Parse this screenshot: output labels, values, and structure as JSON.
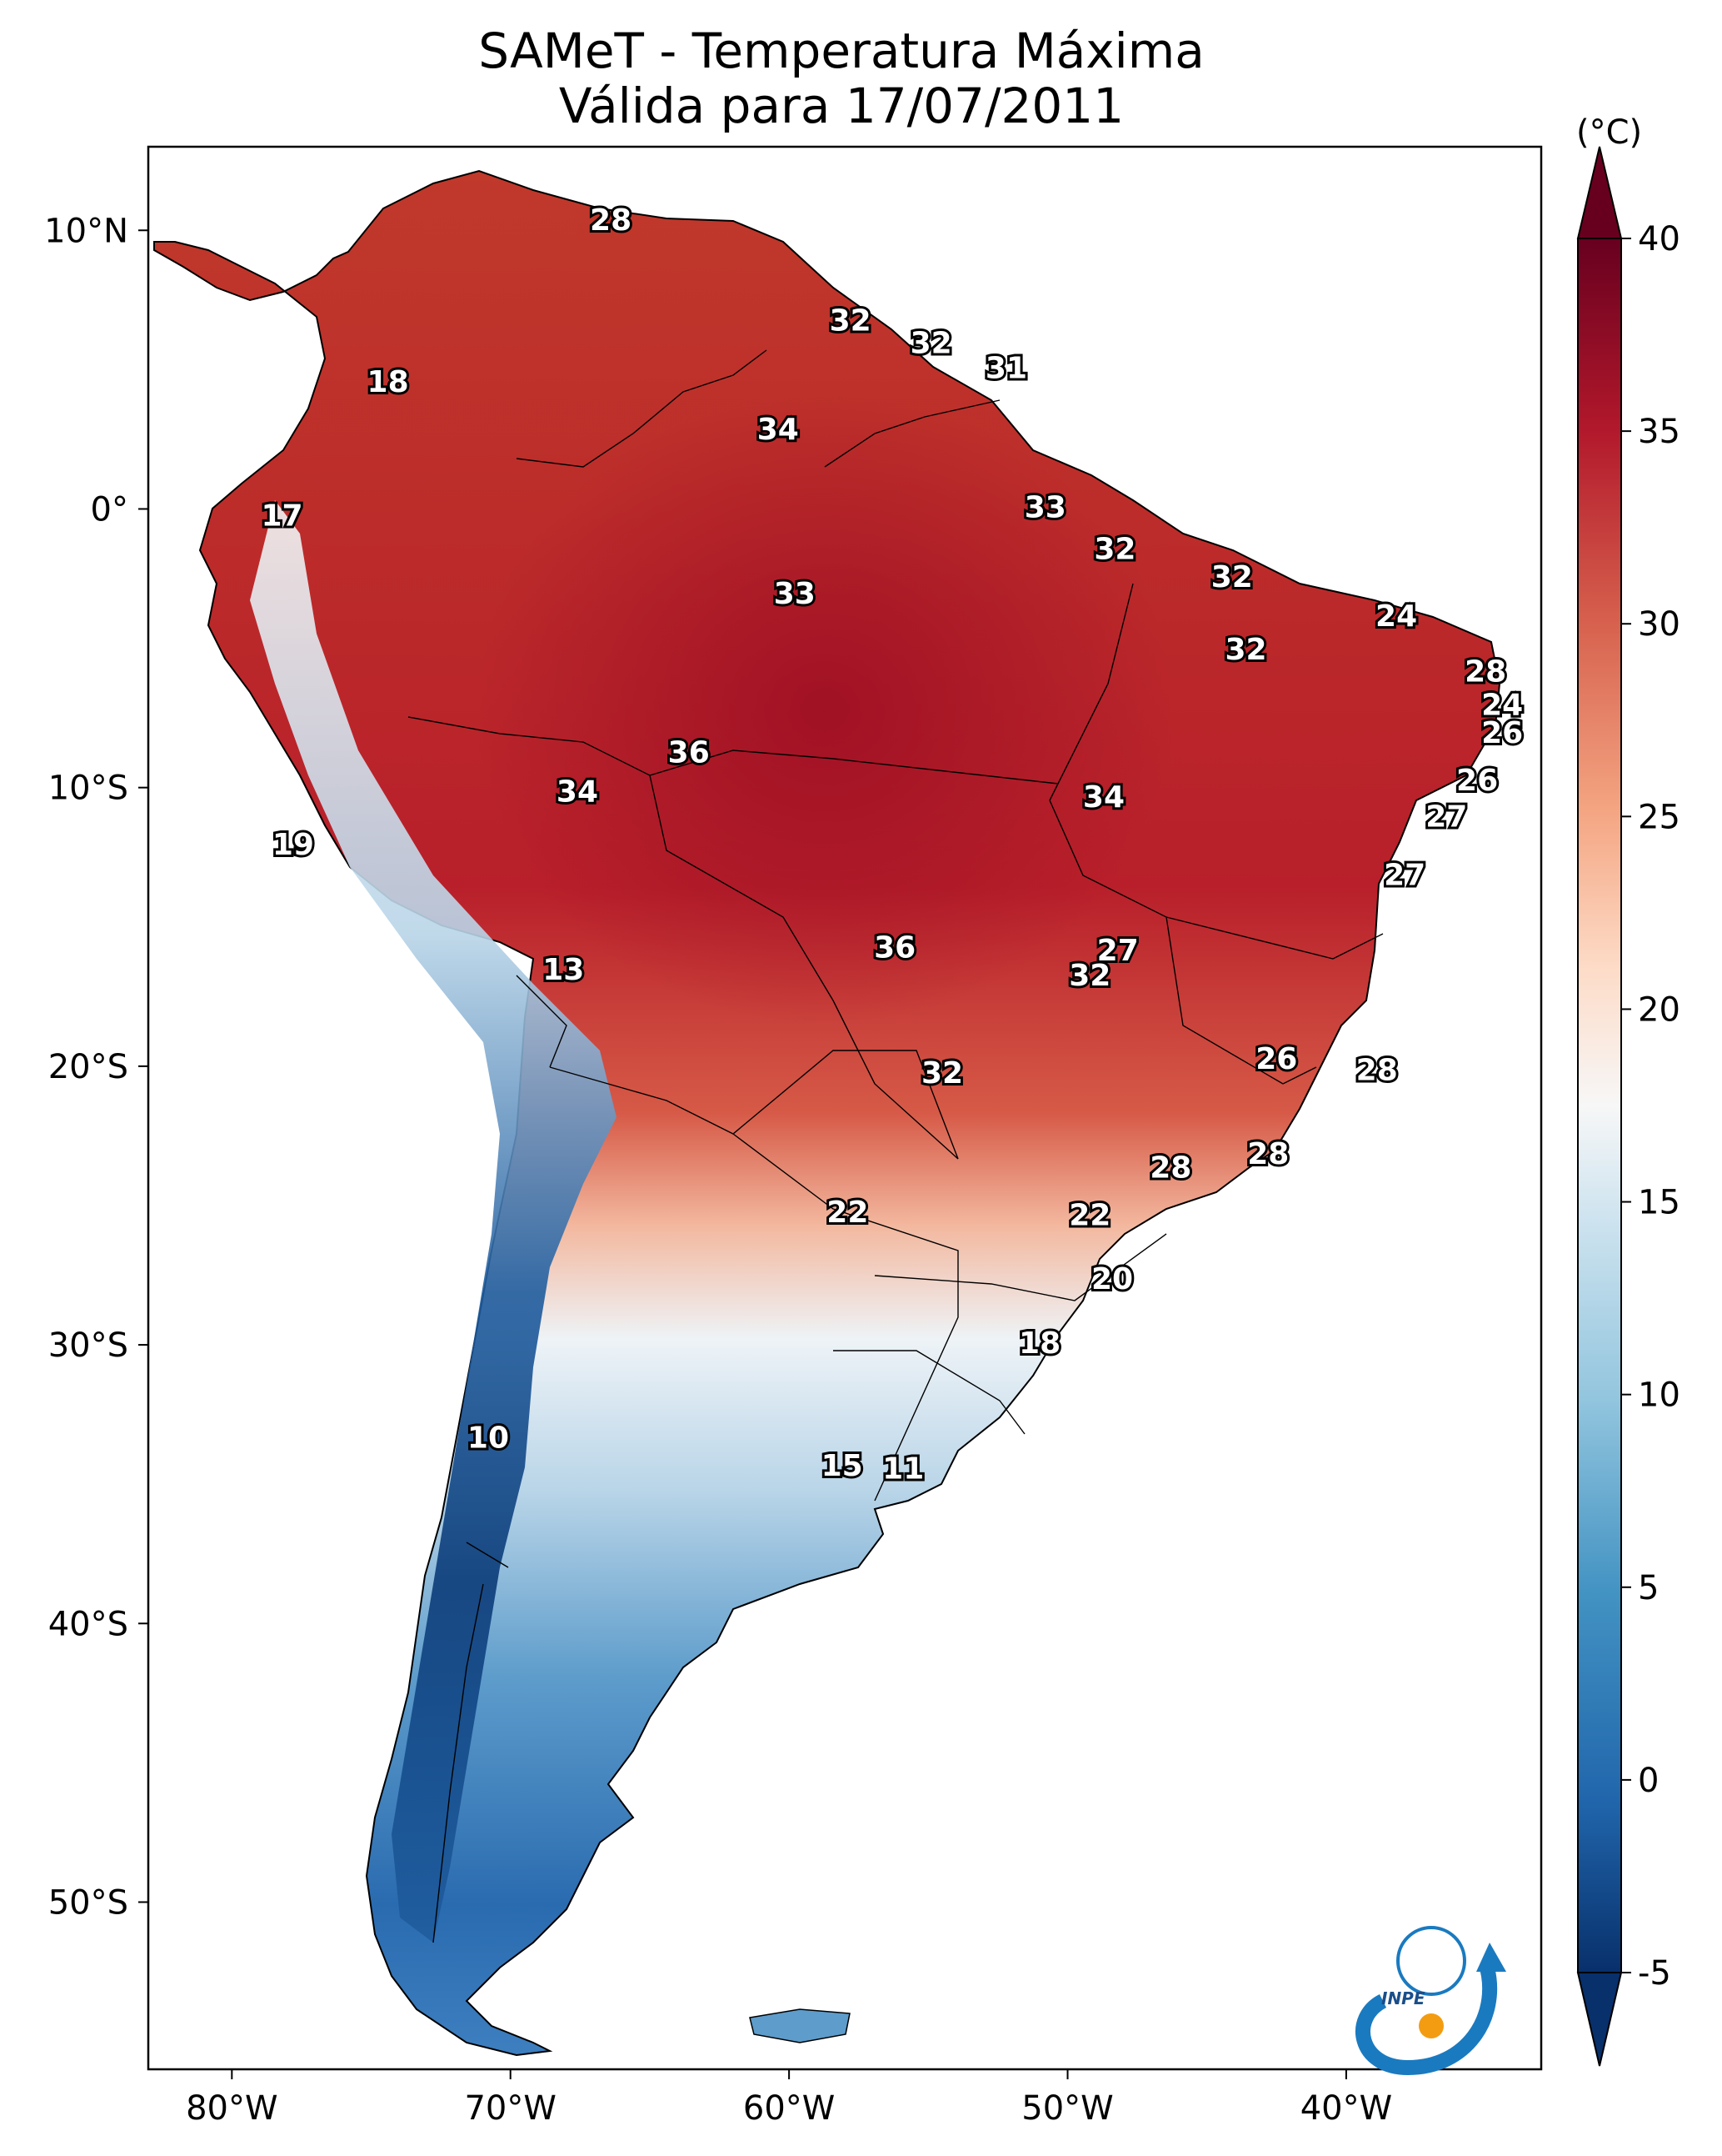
{
  "title": {
    "line1": "SAMeT - Temperatura Máxima",
    "line2": "Válida para 17/07/2011"
  },
  "map": {
    "lon_range": [
      -83,
      -33
    ],
    "lat_range": [
      -56,
      13
    ],
    "xticks": [
      {
        "lon": -80,
        "label": "80°W"
      },
      {
        "lon": -70,
        "label": "70°W"
      },
      {
        "lon": -60,
        "label": "60°W"
      },
      {
        "lon": -50,
        "label": "50°W"
      },
      {
        "lon": -40,
        "label": "40°W"
      }
    ],
    "yticks": [
      {
        "lat": 10,
        "label": "10°N"
      },
      {
        "lat": 0,
        "label": "0°"
      },
      {
        "lat": -10,
        "label": "10°S"
      },
      {
        "lat": -20,
        "label": "20°S"
      },
      {
        "lat": -30,
        "label": "30°S"
      },
      {
        "lat": -40,
        "label": "40°S"
      },
      {
        "lat": -50,
        "label": "50°S"
      }
    ],
    "contour_labels": [
      {
        "lon": -66.4,
        "lat": 10.3,
        "text": "28"
      },
      {
        "lon": -57.8,
        "lat": 6.7,
        "text": "32"
      },
      {
        "lon": -54.9,
        "lat": 5.9,
        "text": "32"
      },
      {
        "lon": -52.2,
        "lat": 5.0,
        "text": "31"
      },
      {
        "lon": -74.4,
        "lat": 4.5,
        "text": "18"
      },
      {
        "lon": -60.4,
        "lat": 2.8,
        "text": "34"
      },
      {
        "lon": -78.2,
        "lat": -0.3,
        "text": "17"
      },
      {
        "lon": -50.8,
        "lat": 0.0,
        "text": "33"
      },
      {
        "lon": -48.3,
        "lat": -1.5,
        "text": "32"
      },
      {
        "lon": -44.1,
        "lat": -2.5,
        "text": "32"
      },
      {
        "lon": -59.8,
        "lat": -3.1,
        "text": "33"
      },
      {
        "lon": -38.2,
        "lat": -3.9,
        "text": "24"
      },
      {
        "lon": -43.6,
        "lat": -5.1,
        "text": "32"
      },
      {
        "lon": -35.0,
        "lat": -5.9,
        "text": "28"
      },
      {
        "lon": -34.4,
        "lat": -7.1,
        "text": "24"
      },
      {
        "lon": -34.4,
        "lat": -8.1,
        "text": "26"
      },
      {
        "lon": -63.6,
        "lat": -8.8,
        "text": "36"
      },
      {
        "lon": -35.3,
        "lat": -9.8,
        "text": "26"
      },
      {
        "lon": -67.6,
        "lat": -10.2,
        "text": "34"
      },
      {
        "lon": -48.7,
        "lat": -10.4,
        "text": "34"
      },
      {
        "lon": -36.4,
        "lat": -11.1,
        "text": "27"
      },
      {
        "lon": -77.8,
        "lat": -12.1,
        "text": "19"
      },
      {
        "lon": -37.9,
        "lat": -13.2,
        "text": "27"
      },
      {
        "lon": -56.2,
        "lat": -15.8,
        "text": "36"
      },
      {
        "lon": -48.2,
        "lat": -15.9,
        "text": "27"
      },
      {
        "lon": -49.2,
        "lat": -16.8,
        "text": "32"
      },
      {
        "lon": -68.1,
        "lat": -16.6,
        "text": "13"
      },
      {
        "lon": -42.5,
        "lat": -19.8,
        "text": "26"
      },
      {
        "lon": -38.9,
        "lat": -20.2,
        "text": "28"
      },
      {
        "lon": -54.5,
        "lat": -20.3,
        "text": "32"
      },
      {
        "lon": -46.3,
        "lat": -23.7,
        "text": "28"
      },
      {
        "lon": -42.8,
        "lat": -23.2,
        "text": "28"
      },
      {
        "lon": -57.9,
        "lat": -25.3,
        "text": "22"
      },
      {
        "lon": -49.2,
        "lat": -25.4,
        "text": "22"
      },
      {
        "lon": -48.4,
        "lat": -27.7,
        "text": "20"
      },
      {
        "lon": -51.0,
        "lat": -30.0,
        "text": "18"
      },
      {
        "lon": -70.8,
        "lat": -33.4,
        "text": "10"
      },
      {
        "lon": -58.1,
        "lat": -34.4,
        "text": "15"
      },
      {
        "lon": -55.9,
        "lat": -34.5,
        "text": "11"
      }
    ]
  },
  "colorbar": {
    "unit": "(°C)",
    "min": -5,
    "max": 40,
    "ticks": [
      {
        "value": 40,
        "label": "40"
      },
      {
        "value": 35,
        "label": "35"
      },
      {
        "value": 30,
        "label": "30"
      },
      {
        "value": 25,
        "label": "25"
      },
      {
        "value": 20,
        "label": "20"
      },
      {
        "value": 15,
        "label": "15"
      },
      {
        "value": 10,
        "label": "10"
      },
      {
        "value": 5,
        "label": "5"
      },
      {
        "value": 0,
        "label": "0"
      },
      {
        "value": -5,
        "label": "-5"
      }
    ],
    "colors": [
      "#08306b",
      "#2166ac",
      "#4393c3",
      "#92c5de",
      "#d1e5f0",
      "#f7f7f7",
      "#fddbc7",
      "#f4a582",
      "#d6604d",
      "#b2182b",
      "#67001f"
    ]
  },
  "logo": {
    "text": "INPE"
  }
}
